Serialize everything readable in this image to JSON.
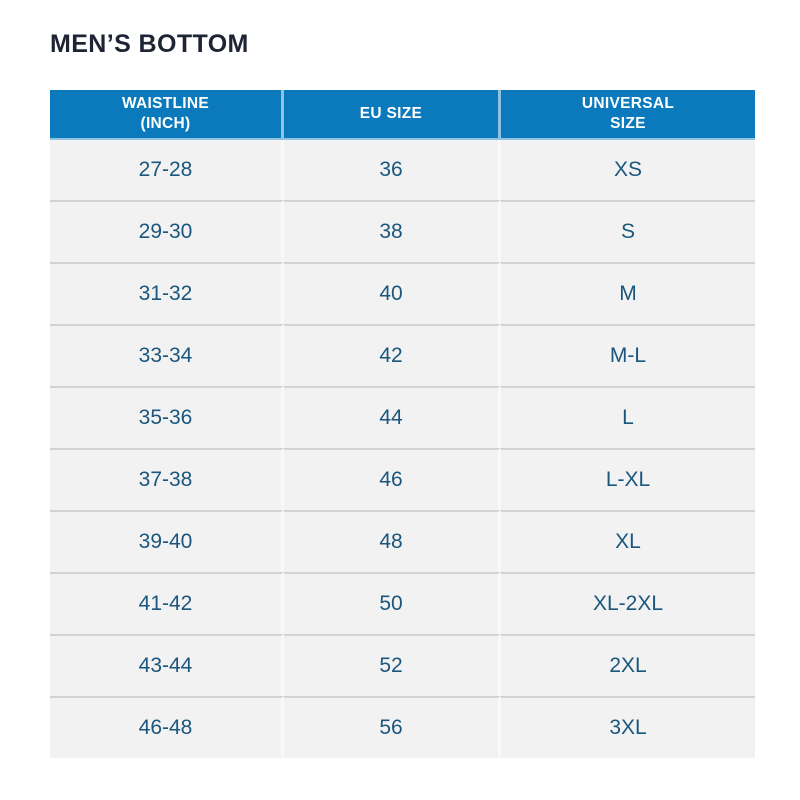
{
  "chart_data": {
    "type": "table",
    "title": "MEN’S BOTTOM",
    "columns": [
      {
        "label": "WAISTLINE (INCH)",
        "line1": "WAISTLINE",
        "line2": "(INCH)"
      },
      {
        "label": "EU SIZE",
        "line1": "EU SIZE",
        "line2": ""
      },
      {
        "label": "UNIVERSAL SIZE",
        "line1": "UNIVERSAL",
        "line2": "SIZE"
      }
    ],
    "rows": [
      [
        "27-28",
        "36",
        "XS"
      ],
      [
        "29-30",
        "38",
        "S"
      ],
      [
        "31-32",
        "40",
        "M"
      ],
      [
        "33-34",
        "42",
        "M-L"
      ],
      [
        "35-36",
        "44",
        "L"
      ],
      [
        "37-38",
        "46",
        "L-XL"
      ],
      [
        "39-40",
        "48",
        "XL"
      ],
      [
        "41-42",
        "50",
        "XL-2XL"
      ],
      [
        "43-44",
        "52",
        "2XL"
      ],
      [
        "46-48",
        "56",
        "3XL"
      ]
    ]
  },
  "colors": {
    "header_bg": "#0b7abd",
    "header_text": "#ffffff",
    "row_bg": "#f2f2f2",
    "cell_text": "#1a567d",
    "title_text": "#1e2433",
    "row_divider": "#d3d3d3",
    "page_bg": "#ffffff"
  }
}
